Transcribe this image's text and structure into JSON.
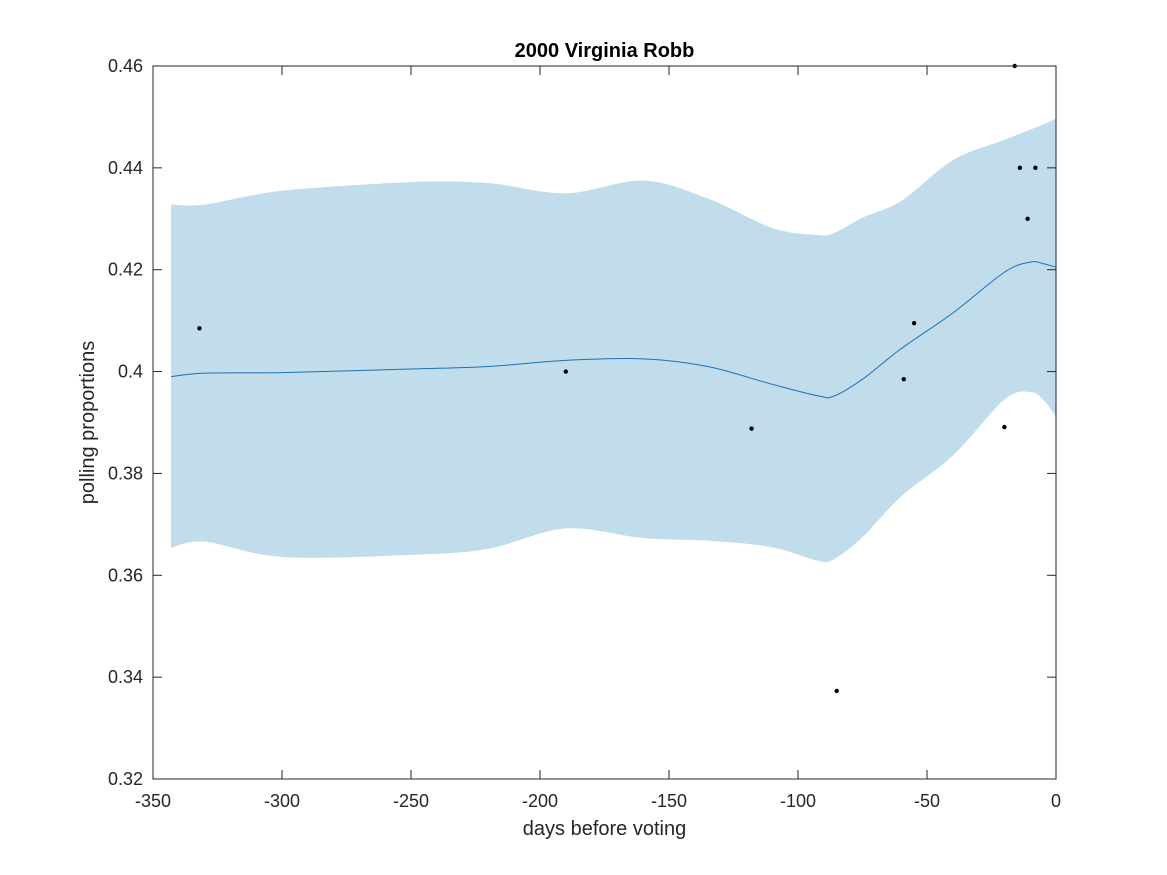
{
  "chart_data": {
    "type": "line",
    "title": "2000 Virginia Robb",
    "xlabel": "days before voting",
    "ylabel": "polling proportions",
    "xlim": [
      -350,
      0
    ],
    "ylim": [
      0.32,
      0.46
    ],
    "xticks": [
      -350,
      -300,
      -250,
      -200,
      -150,
      -100,
      -50,
      0
    ],
    "xtick_labels": [
      "-350",
      "-300",
      "-250",
      "-200",
      "-150",
      "-100",
      "-50",
      "0"
    ],
    "yticks": [
      0.32,
      0.34,
      0.36,
      0.38,
      0.4,
      0.42,
      0.44,
      0.46
    ],
    "ytick_labels": [
      "0.32",
      "0.34",
      "0.36",
      "0.38",
      "0.4",
      "0.42",
      "0.44",
      "0.46"
    ],
    "grid": false,
    "colors": {
      "band": "#c1dceb",
      "line": "#1f6fb5",
      "points": "#000000",
      "axes": "#262626"
    },
    "x": [
      -343,
      -330,
      -300,
      -250,
      -220,
      -190,
      -160,
      -135,
      -110,
      -92,
      -86,
      -75,
      -60,
      -40,
      -20,
      -10,
      -5,
      0
    ],
    "series": [
      {
        "type": "line",
        "values": [
          0.399,
          0.3997,
          0.3998,
          0.4005,
          0.401,
          0.4022,
          0.4025,
          0.401,
          0.3975,
          0.3952,
          0.3952,
          0.3985,
          0.4045,
          0.4115,
          0.4195,
          0.4215,
          0.4212,
          0.4205
        ]
      },
      {
        "type": "band",
        "upper": [
          0.4328,
          0.4328,
          0.4355,
          0.4372,
          0.437,
          0.435,
          0.4375,
          0.434,
          0.4282,
          0.4268,
          0.4272,
          0.4302,
          0.4335,
          0.4415,
          0.4455,
          0.4475,
          0.4485,
          0.4497
        ],
        "lower": [
          0.3654,
          0.3666,
          0.3636,
          0.364,
          0.3652,
          0.3692,
          0.3673,
          0.3668,
          0.3655,
          0.3628,
          0.3632,
          0.3675,
          0.3755,
          0.3835,
          0.3945,
          0.396,
          0.3945,
          0.3912
        ]
      },
      {
        "type": "scatter",
        "points": [
          [
            -332,
            0.4085
          ],
          [
            -190,
            0.4
          ],
          [
            -118,
            0.3888
          ],
          [
            -85,
            0.3373
          ],
          [
            -59,
            0.3985
          ],
          [
            -55,
            0.4095
          ],
          [
            -20,
            0.3891
          ],
          [
            -16,
            0.46
          ],
          [
            -14,
            0.44
          ],
          [
            -11,
            0.43
          ],
          [
            -8,
            0.44
          ]
        ]
      }
    ]
  }
}
